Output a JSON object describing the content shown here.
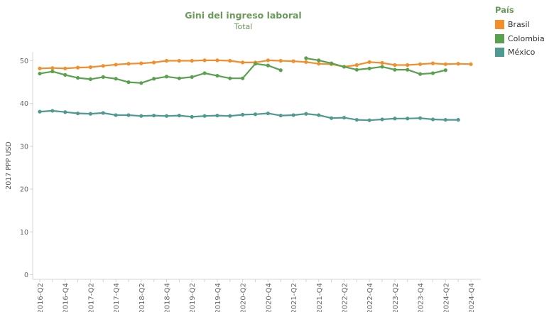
{
  "chart_data": {
    "type": "line",
    "title": "Gini del ingreso laboral",
    "subtitle": "Total",
    "ylabel": "2017 PPP USD",
    "xlabel": "",
    "ylim": [
      0,
      55
    ],
    "yticks": [
      0,
      10,
      20,
      30,
      40,
      50
    ],
    "grid": false,
    "legend": {
      "title": "País",
      "position": "top-right"
    },
    "x": [
      "2016-Q2",
      "2016-Q3",
      "2016-Q4",
      "2017-Q1",
      "2017-Q2",
      "2017-Q3",
      "2017-Q4",
      "2018-Q1",
      "2018-Q2",
      "2018-Q3",
      "2018-Q4",
      "2019-Q1",
      "2019-Q2",
      "2019-Q3",
      "2019-Q4",
      "2020-Q1",
      "2020-Q2",
      "2020-Q3",
      "2020-Q4",
      "2021-Q1",
      "2021-Q2",
      "2021-Q3",
      "2021-Q4",
      "2022-Q1",
      "2022-Q2",
      "2022-Q3",
      "2022-Q4",
      "2023-Q1",
      "2023-Q2",
      "2023-Q3",
      "2023-Q4",
      "2024-Q1",
      "2024-Q2",
      "2024-Q3",
      "2024-Q4"
    ],
    "x_tick_labels": [
      "2016-Q2",
      "2016-Q4",
      "2017-Q2",
      "2017-Q4",
      "2018-Q2",
      "2018-Q4",
      "2019-Q2",
      "2019-Q4",
      "2020-Q2",
      "2020-Q4",
      "2021-Q2",
      "2021-Q4",
      "2022-Q2",
      "2022-Q4",
      "2023-Q2",
      "2023-Q4",
      "2024-Q2",
      "2024-Q4"
    ],
    "series": [
      {
        "name": "Brasil",
        "color": "#f28e2b",
        "values": [
          48.2,
          48.3,
          48.2,
          48.4,
          48.5,
          48.8,
          49.1,
          49.3,
          49.4,
          49.6,
          50.0,
          50.0,
          50.0,
          50.1,
          50.1,
          50.0,
          49.6,
          49.6,
          50.1,
          50.0,
          49.9,
          49.7,
          49.3,
          49.2,
          48.6,
          49.0,
          49.7,
          49.5,
          49.0,
          49.0,
          49.2,
          49.4,
          49.2,
          49.3,
          49.2
        ]
      },
      {
        "name": "Colombia",
        "color": "#59a14f",
        "values": [
          47.0,
          47.5,
          46.7,
          46.0,
          45.7,
          46.2,
          45.8,
          45.0,
          44.8,
          45.8,
          46.3,
          45.9,
          46.2,
          47.1,
          46.5,
          45.9,
          45.9,
          49.3,
          48.9,
          47.8,
          null,
          50.6,
          50.1,
          49.4,
          48.6,
          47.9,
          48.2,
          48.6,
          47.9,
          47.9,
          46.9,
          47.1,
          47.8,
          null,
          null
        ]
      },
      {
        "name": "México",
        "color": "#4e9a91",
        "values": [
          38.1,
          38.3,
          38.0,
          37.7,
          37.6,
          37.8,
          37.3,
          37.3,
          37.1,
          37.2,
          37.1,
          37.2,
          36.9,
          37.1,
          37.2,
          37.1,
          37.4,
          37.5,
          37.7,
          37.2,
          37.3,
          37.6,
          37.3,
          36.6,
          36.7,
          36.2,
          36.1,
          36.3,
          36.5,
          36.5,
          36.6,
          36.3,
          36.2,
          36.2,
          null
        ]
      }
    ]
  }
}
